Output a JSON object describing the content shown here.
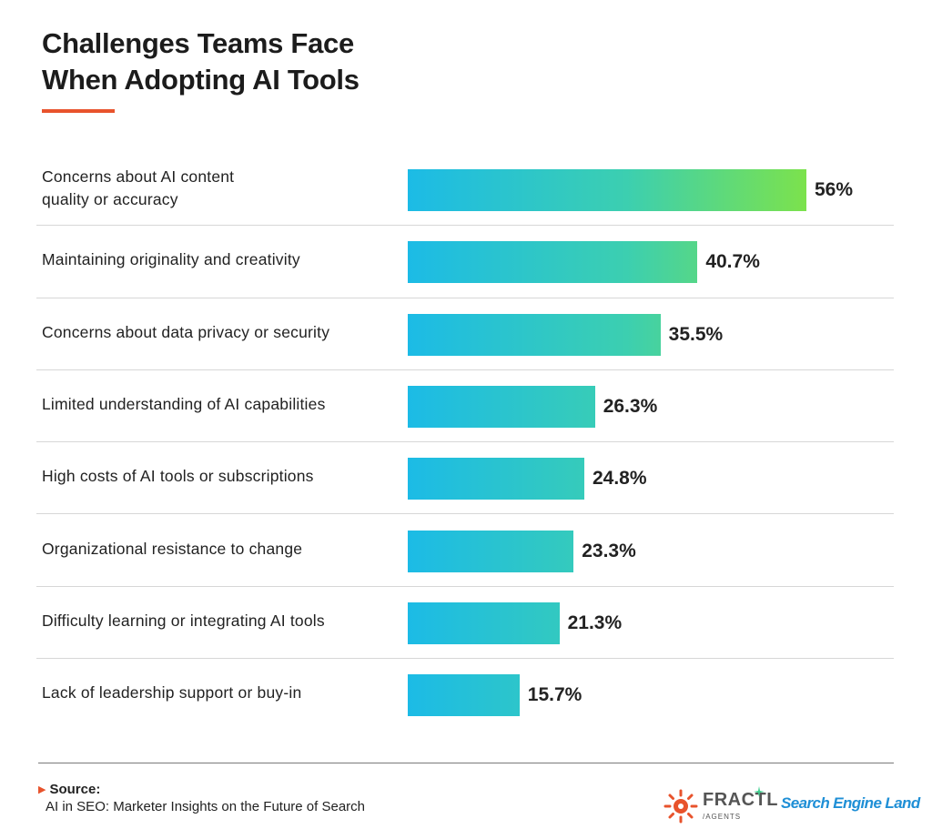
{
  "chart_data": {
    "type": "bar",
    "orientation": "horizontal",
    "title": "Challenges Teams Face When Adopting AI Tools",
    "title_lines": [
      "Challenges Teams Face",
      "When Adopting AI Tools"
    ],
    "categories": [
      "Concerns about AI content quality or accuracy",
      "Maintaining originality and creativity",
      "Concerns about data privacy or security",
      "Limited understanding of AI capabilities",
      "High costs of AI tools or subscriptions",
      "Organizational resistance to change",
      "Difficulty learning or integrating AI tools",
      "Lack of leadership support or buy-in"
    ],
    "label_lines": [
      [
        "Concerns about AI content",
        "quality or accuracy"
      ],
      [
        "Maintaining originality and creativity"
      ],
      [
        "Concerns about data privacy or security"
      ],
      [
        "Limited understanding of AI capabilities"
      ],
      [
        "High costs of AI tools or subscriptions"
      ],
      [
        "Organizational resistance to change"
      ],
      [
        "Difficulty learning or integrating AI tools"
      ],
      [
        "Lack of leadership support or buy-in"
      ]
    ],
    "values": [
      56,
      40.7,
      35.5,
      26.3,
      24.8,
      23.3,
      21.3,
      15.7
    ],
    "value_labels": [
      "56%",
      "40.7%",
      "35.5%",
      "26.3%",
      "24.8%",
      "23.3%",
      "21.3%",
      "15.7%"
    ],
    "xlim": [
      0,
      56
    ],
    "xlabel": "",
    "ylabel": "",
    "colors": {
      "bar_start": "#1cbbe6",
      "bar_end": "#7ce24c",
      "accent": "#e8532c"
    }
  },
  "footer": {
    "source_heading": "Source:",
    "source_text": "AI in SEO: Marketer Insights on the Future of Search"
  },
  "logos": {
    "fractl_name": "FRACTL",
    "fractl_sub": "/AGENTS",
    "sel_name": "Search Engine Land"
  }
}
